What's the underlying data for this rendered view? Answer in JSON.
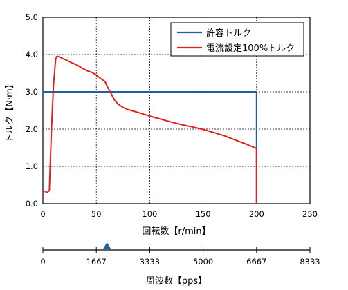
{
  "chart_data": {
    "type": "line",
    "xlabel": "回転数【r/min】",
    "ylabel": "トルク【N·m】",
    "xlim": [
      0,
      250
    ],
    "ylim": [
      0,
      5
    ],
    "x_ticks": [
      0,
      50,
      100,
      150,
      200,
      250
    ],
    "y_ticks": [
      0.0,
      1.0,
      2.0,
      3.0,
      4.0,
      5.0
    ],
    "x_tick_labels": [
      "0",
      "50",
      "100",
      "150",
      "200",
      "250"
    ],
    "y_tick_labels": [
      "0.0",
      "1.0",
      "2.0",
      "3.0",
      "4.0",
      "5.0"
    ],
    "grid": true,
    "legend_position": "top-right",
    "series": [
      {
        "name": "許容トルク",
        "color": "#1f5fa8",
        "x": [
          0,
          200,
          200
        ],
        "y": [
          3.0,
          3.0,
          0.0
        ]
      },
      {
        "name": "電流設定100%トルク",
        "color": "#e0201b",
        "x": [
          2,
          4,
          6,
          8,
          10,
          12,
          13,
          15,
          18,
          22,
          27,
          32,
          37,
          42,
          46,
          50,
          54,
          58,
          61,
          64,
          67,
          70,
          75,
          80,
          90,
          100,
          110,
          120,
          130,
          140,
          150,
          160,
          170,
          180,
          190,
          200,
          200
        ],
        "y": [
          0.33,
          0.3,
          0.35,
          2.0,
          3.2,
          3.88,
          3.95,
          3.95,
          3.9,
          3.85,
          3.78,
          3.72,
          3.63,
          3.56,
          3.52,
          3.45,
          3.36,
          3.28,
          3.1,
          2.95,
          2.78,
          2.68,
          2.58,
          2.52,
          2.44,
          2.35,
          2.27,
          2.19,
          2.12,
          2.06,
          1.99,
          1.91,
          1.82,
          1.71,
          1.6,
          1.48,
          0.0
        ]
      }
    ],
    "secondary_axis": {
      "label": "周波数【pps】",
      "ticks": [
        0,
        1667,
        3333,
        5000,
        6667,
        8333
      ],
      "tick_labels": [
        "0",
        "1667",
        "3333",
        "5000",
        "6667",
        "8333"
      ],
      "marker_value": 2000,
      "marker_color": "#1f5fa8"
    }
  }
}
